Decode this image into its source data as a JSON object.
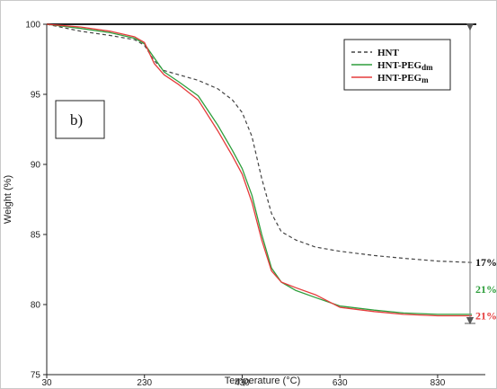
{
  "chart_data": {
    "type": "line",
    "panel_label": "b)",
    "xlabel": "Temperature (°C)",
    "ylabel": "Weight (%)",
    "xlim": [
      30,
      900
    ],
    "ylim": [
      75,
      100
    ],
    "x_ticks": [
      30,
      230,
      430,
      630,
      830
    ],
    "y_ticks": [
      75,
      80,
      85,
      90,
      95,
      100
    ],
    "grid": false,
    "legend_position": "top-right",
    "series": [
      {
        "name": "HNT",
        "legend_base": "HNT",
        "legend_sub": "",
        "color": "#444444",
        "style": "dashed",
        "x": [
          30,
          100,
          160,
          210,
          230,
          250,
          270,
          300,
          340,
          380,
          410,
          430,
          450,
          470,
          490,
          510,
          540,
          580,
          630,
          700,
          760,
          830,
          900
        ],
        "y": [
          100,
          99.5,
          99.2,
          98.9,
          98.5,
          97.4,
          96.7,
          96.4,
          96.0,
          95.4,
          94.6,
          93.7,
          92.0,
          89.0,
          86.5,
          85.2,
          84.6,
          84.1,
          83.8,
          83.5,
          83.3,
          83.1,
          83.0
        ]
      },
      {
        "name": "HNT-PEGdm",
        "legend_base": "HNT-PEG",
        "legend_sub": "dm",
        "color": "#2e9e3c",
        "style": "solid",
        "x": [
          30,
          100,
          160,
          210,
          230,
          250,
          270,
          300,
          340,
          380,
          410,
          430,
          450,
          470,
          490,
          510,
          540,
          580,
          630,
          700,
          760,
          830,
          900
        ],
        "y": [
          100,
          99.7,
          99.4,
          99.0,
          98.6,
          97.6,
          96.6,
          95.9,
          94.9,
          92.8,
          91.0,
          89.7,
          87.8,
          85.0,
          82.6,
          81.6,
          81.0,
          80.5,
          79.9,
          79.6,
          79.4,
          79.3,
          79.3
        ]
      },
      {
        "name": "HNT-PEGm",
        "legend_base": "HNT-PEG",
        "legend_sub": "m",
        "color": "#e53b3b",
        "style": "solid",
        "x": [
          30,
          100,
          160,
          210,
          230,
          250,
          270,
          300,
          340,
          380,
          410,
          430,
          450,
          470,
          490,
          510,
          540,
          580,
          630,
          700,
          760,
          830,
          900
        ],
        "y": [
          100,
          99.8,
          99.5,
          99.1,
          98.7,
          97.2,
          96.4,
          95.7,
          94.6,
          92.4,
          90.6,
          89.3,
          87.3,
          84.6,
          82.4,
          81.6,
          81.2,
          80.7,
          79.8,
          79.5,
          79.3,
          79.2,
          79.2
        ]
      }
    ],
    "annotations": [
      {
        "text": "17%",
        "color": "#111111",
        "y": 83.0
      },
      {
        "text": "21%",
        "color": "#2e9e3c",
        "y": 81.1
      },
      {
        "text": "21%",
        "color": "#e53b3b",
        "y": 79.2
      }
    ]
  }
}
